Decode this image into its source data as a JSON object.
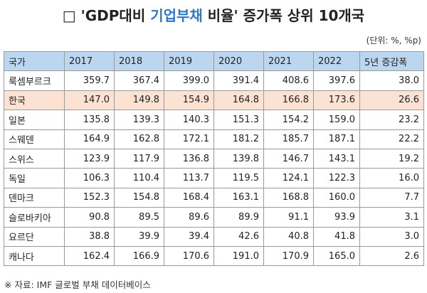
{
  "title": {
    "parts": [
      "□ 'GDP대비 ",
      "기업부채",
      " 비율' 증가폭 상위 10개국"
    ]
  },
  "unit": "(단위: %, %p)",
  "table": {
    "header": [
      "국가",
      "2017",
      "2018",
      "2019",
      "2020",
      "2021",
      "2022",
      "5년 증감폭"
    ],
    "rows": [
      [
        "룩셈부르크",
        "359.7",
        "367.4",
        "399.0",
        "391.4",
        "408.6",
        "397.6",
        "38.0"
      ],
      [
        "한국",
        "147.0",
        "149.8",
        "154.9",
        "164.8",
        "166.8",
        "173.6",
        "26.6"
      ],
      [
        "일본",
        "135.8",
        "139.3",
        "140.3",
        "151.3",
        "154.2",
        "159.0",
        "23.2"
      ],
      [
        "스웨덴",
        "164.9",
        "162.8",
        "172.1",
        "181.2",
        "185.7",
        "187.1",
        "22.2"
      ],
      [
        "스위스",
        "123.9",
        "117.9",
        "136.8",
        "139.8",
        "146.7",
        "143.1",
        "19.2"
      ],
      [
        "독일",
        "106.3",
        "110.4",
        "113.7",
        "119.5",
        "124.1",
        "122.3",
        "16.0"
      ],
      [
        "덴마크",
        "152.3",
        "154.8",
        "168.4",
        "163.1",
        "168.8",
        "160.0",
        "7.7"
      ],
      [
        "슬로바키아",
        "90.8",
        "89.5",
        "89.6",
        "89.9",
        "91.1",
        "93.9",
        "3.1"
      ],
      [
        "요르단",
        "38.8",
        "39.9",
        "39.4",
        "42.6",
        "40.8",
        "41.8",
        "3.0"
      ],
      [
        "캐나다",
        "162.4",
        "166.9",
        "170.6",
        "191.0",
        "170.9",
        "165.0",
        "2.6"
      ]
    ]
  },
  "source": "※ 자료: IMF 글로벌 부채 데이터베이스"
}
